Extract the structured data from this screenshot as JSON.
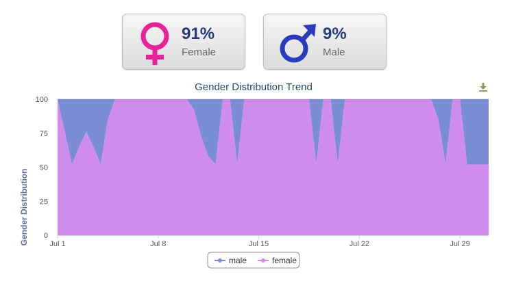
{
  "summary": {
    "female": {
      "percent": "91%",
      "label": "Female",
      "color": "#e8239a"
    },
    "male": {
      "percent": "9%",
      "label": "Male",
      "color": "#2a3bbd"
    }
  },
  "chart_icons": {
    "export": "download-icon"
  },
  "chart_data": {
    "type": "area",
    "stacking": "percent",
    "title": "Gender Distribution Trend",
    "xlabel": "",
    "ylabel": "Gender Distribution",
    "ylim": [
      0,
      100
    ],
    "yticks": [
      0,
      25,
      50,
      75,
      100
    ],
    "xlim": [
      "Jul 1",
      "Jul 31"
    ],
    "xtick_labels": [
      "Jul 1",
      "Jul 8",
      "Jul 15",
      "Jul 22",
      "Jul 29"
    ],
    "grid": true,
    "legend": "bottom-center",
    "x": [
      1,
      2,
      2.5,
      3,
      3.5,
      4,
      4.5,
      5,
      5.5,
      6,
      7,
      8,
      9,
      10,
      10.5,
      11,
      11.5,
      12,
      12.5,
      13,
      13.5,
      14,
      14.5,
      15,
      16,
      17,
      18,
      18.5,
      19,
      19.5,
      20,
      20.5,
      21,
      21.5,
      22,
      23,
      24,
      25,
      26,
      27,
      27.5,
      28,
      28.5,
      29,
      29.5,
      30,
      30.5,
      31
    ],
    "series": [
      {
        "name": "female",
        "color": "#cf8cea",
        "values": [
          100,
          52,
          65,
          76,
          65,
          52,
          85,
          100,
          100,
          100,
          100,
          100,
          100,
          100,
          92,
          72,
          58,
          52,
          100,
          100,
          52,
          100,
          100,
          100,
          100,
          100,
          100,
          100,
          52,
          100,
          100,
          52,
          100,
          100,
          100,
          100,
          100,
          100,
          100,
          100,
          85,
          52,
          100,
          100,
          52,
          52,
          52,
          52
        ]
      },
      {
        "name": "male",
        "color": "#7a8ed6",
        "values": [
          0,
          48,
          35,
          24,
          35,
          48,
          15,
          0,
          0,
          0,
          0,
          0,
          0,
          0,
          8,
          28,
          42,
          48,
          0,
          0,
          48,
          0,
          0,
          0,
          0,
          0,
          0,
          0,
          48,
          0,
          0,
          48,
          0,
          0,
          0,
          0,
          0,
          0,
          0,
          0,
          15,
          48,
          0,
          0,
          48,
          48,
          48,
          48
        ]
      }
    ]
  }
}
